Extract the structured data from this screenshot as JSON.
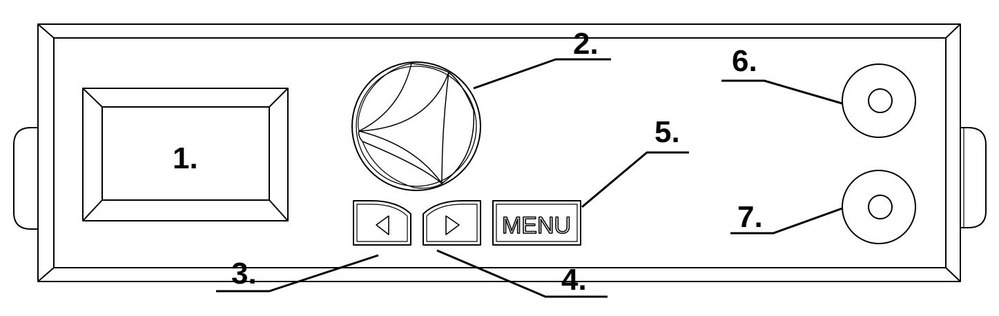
{
  "labels": {
    "display": "1.",
    "knob": "2.",
    "left_button": "3.",
    "right_button": "4.",
    "menu_button": "5.",
    "jack_top": "6.",
    "jack_bottom": "7."
  },
  "menu_button_text": "MENU",
  "colors": {
    "line": "#000000",
    "background": "#ffffff"
  }
}
